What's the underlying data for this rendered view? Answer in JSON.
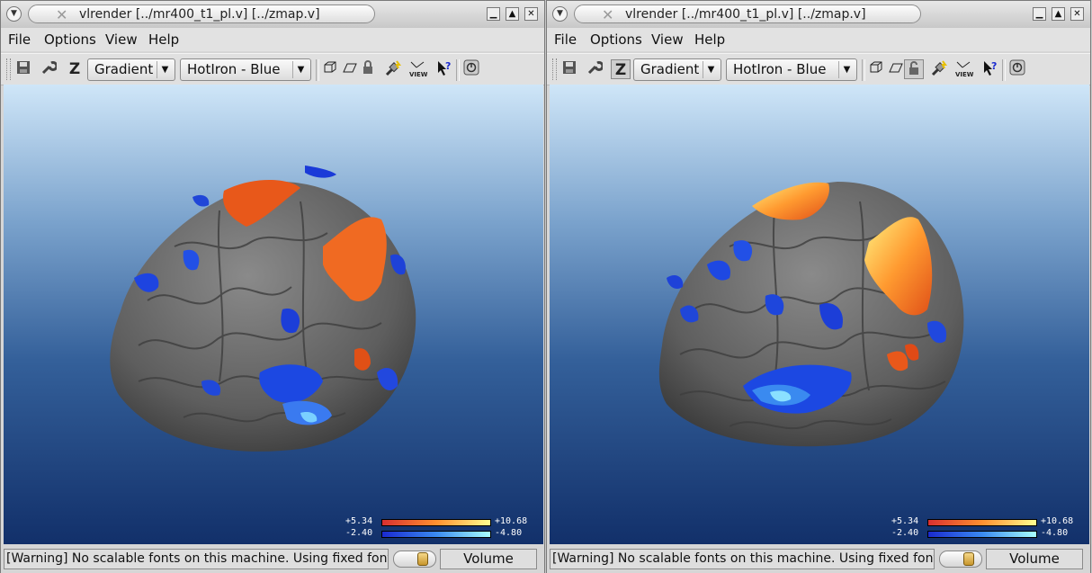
{
  "windows": [
    {
      "title": "vlrender [../mr400_t1_pl.v] [../zmap.v]",
      "menu": [
        "File",
        "Options",
        "View",
        "Help"
      ],
      "toolbar": {
        "z_label": "Z",
        "shading_select": "Gradient",
        "colormap_select": "HotIron - Blue",
        "view_label": "VIEW"
      },
      "colorbar": {
        "pos_min": "+5.34",
        "pos_max": "+10.68",
        "neg_min": "-2.40",
        "neg_max": "-4.80",
        "pos_colors": [
          "#d83030",
          "#ffff90"
        ],
        "neg_colors": [
          "#1a2ad0",
          "#a8ffff"
        ]
      },
      "status": {
        "message": "[Warning] No scalable fonts on this machine. Using fixed fonts.",
        "slider_value": 0.75,
        "mode": "Volume"
      }
    },
    {
      "title": "vlrender [../mr400_t1_pl.v] [../zmap.v]",
      "menu": [
        "File",
        "Options",
        "View",
        "Help"
      ],
      "toolbar": {
        "z_label": "Z",
        "shading_select": "Gradient",
        "colormap_select": "HotIron - Blue",
        "view_label": "VIEW"
      },
      "colorbar": {
        "pos_min": "+5.34",
        "pos_max": "+10.68",
        "neg_min": "-2.40",
        "neg_max": "-4.80",
        "pos_colors": [
          "#d83030",
          "#ffff90"
        ],
        "neg_colors": [
          "#1a2ad0",
          "#a8ffff"
        ]
      },
      "status": {
        "message": "[Warning] No scalable fonts on this machine. Using fixed fonts.",
        "slider_value": 0.75,
        "mode": "Volume"
      }
    }
  ]
}
